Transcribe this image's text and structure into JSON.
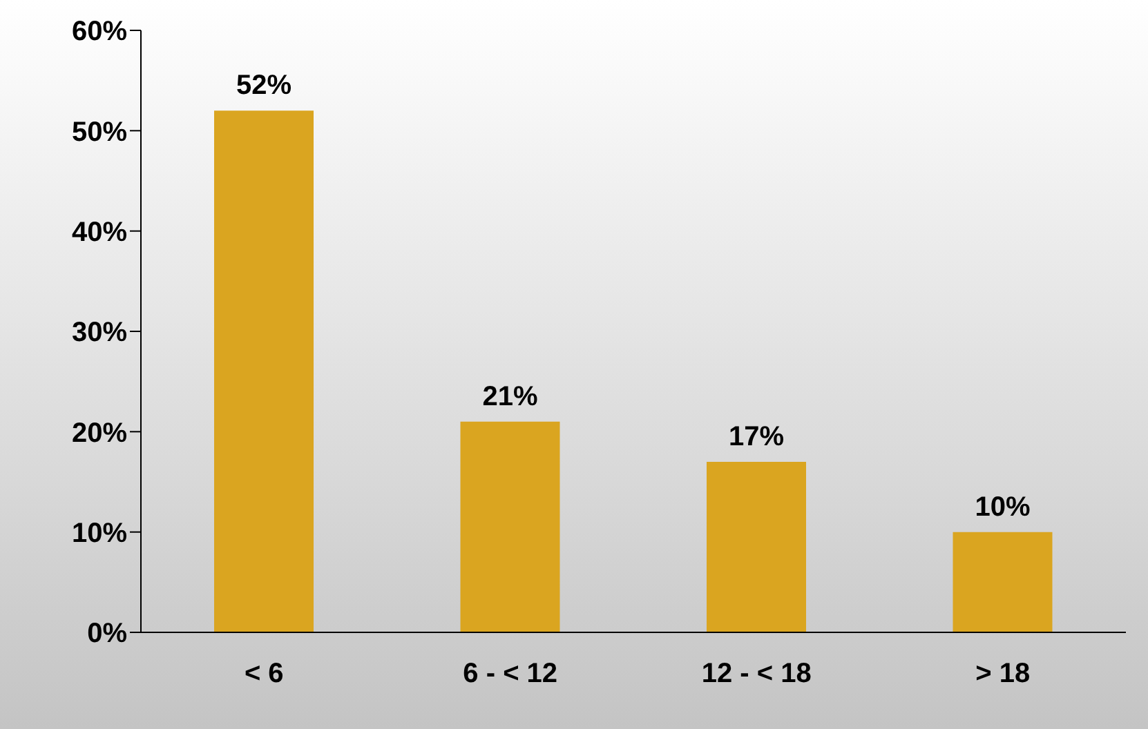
{
  "chart_data": {
    "type": "bar",
    "categories": [
      "< 6",
      "6 - < 12",
      "12 - < 18",
      "> 18"
    ],
    "values": [
      52,
      21,
      17,
      10
    ],
    "value_labels": [
      "52%",
      "21%",
      "17%",
      "10%"
    ],
    "color": "#daa520",
    "ylim": [
      0,
      60
    ],
    "yticks": [
      {
        "value": 0,
        "label": "0%"
      },
      {
        "value": 10,
        "label": "10%"
      },
      {
        "value": 20,
        "label": "20%"
      },
      {
        "value": 30,
        "label": "30%"
      },
      {
        "value": 40,
        "label": "40%"
      },
      {
        "value": 50,
        "label": "50%"
      },
      {
        "value": 60,
        "label": "60%"
      }
    ]
  }
}
